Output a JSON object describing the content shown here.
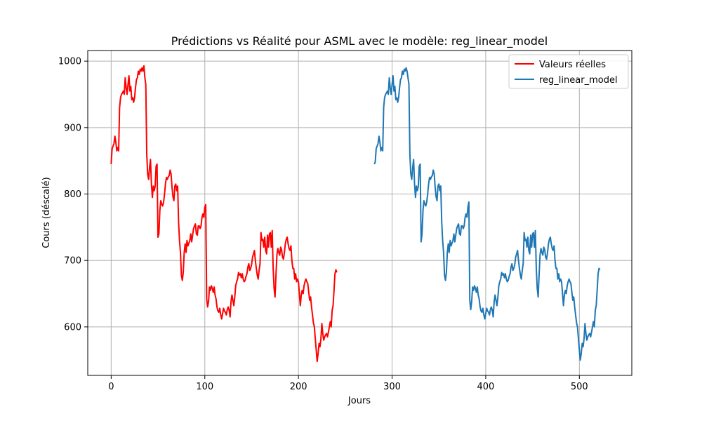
{
  "chart_data": {
    "type": "line",
    "title": "Prédictions vs Réalité pour ASML avec le modèle: reg_linear_model",
    "xlabel": "Jours",
    "ylabel": "Cours (déscalé)",
    "xlim": [
      -25,
      556
    ],
    "ylim": [
      527,
      1016
    ],
    "xticks": [
      0,
      100,
      200,
      300,
      400,
      500
    ],
    "yticks": [
      600,
      700,
      800,
      900,
      1000
    ],
    "grid": true,
    "legend_position": "top-right",
    "series": [
      {
        "name": "Valeurs réelles",
        "color": "#ff0000",
        "x_start": 0,
        "y": [
          845,
          868,
          872,
          876,
          887,
          878,
          865,
          870,
          865,
          930,
          945,
          950,
          952,
          955,
          950,
          975,
          960,
          950,
          965,
          978,
          955,
          962,
          942,
          945,
          938,
          945,
          960,
          972,
          975,
          985,
          980,
          988,
          985,
          990,
          985,
          993,
          975,
          965,
          860,
          830,
          822,
          840,
          852,
          815,
          795,
          812,
          805,
          812,
          842,
          845,
          735,
          740,
          775,
          790,
          785,
          782,
          788,
          800,
          815,
          825,
          822,
          826,
          828,
          836,
          830,
          810,
          796,
          790,
          812,
          815,
          805,
          812,
          758,
          730,
          712,
          678,
          670,
          682,
          712,
          725,
          712,
          730,
          722,
          726,
          730,
          740,
          728,
          738,
          748,
          752,
          755,
          740,
          738,
          752,
          752,
          748,
          752,
          765,
          770,
          765,
          780,
          784,
          642,
          630,
          638,
          660,
          655,
          662,
          658,
          652,
          660,
          648,
          642,
          630,
          624,
          622,
          628,
          618,
          612,
          620,
          628,
          624,
          622,
          618,
          626,
          630,
          625,
          615,
          638,
          648,
          640,
          632,
          645,
          662,
          668,
          672,
          682,
          678,
          680,
          674,
          680,
          672,
          668,
          670,
          676,
          680,
          690,
          695,
          685,
          688,
          694,
          705,
          710,
          715,
          700,
          688,
          678,
          672,
          685,
          695,
          742,
          730,
          732,
          720,
          735,
          715,
          710,
          738,
          720,
          740,
          742,
          720,
          745,
          688,
          658,
          645,
          678,
          708,
          718,
          712,
          708,
          720,
          716,
          705,
          702,
          712,
          725,
          732,
          735,
          725,
          718,
          715,
          722,
          700,
          688,
          688,
          672,
          680,
          668,
          672,
          668,
          650,
          632,
          648,
          655,
          650,
          662,
          668,
          672,
          668,
          665,
          652,
          640,
          645,
          630,
          618,
          606,
          600,
          582,
          565,
          548,
          560,
          575,
          570,
          582,
          605,
          590,
          580,
          585,
          588,
          590,
          585,
          592,
          600,
          608,
          600,
          625,
          632,
          655,
          680,
          686,
          682
        ]
      },
      {
        "name": "reg_linear_model",
        "color": "#1f77b4",
        "x_start": 281,
        "y": [
          845,
          848,
          868,
          872,
          876,
          887,
          878,
          865,
          870,
          865,
          930,
          945,
          950,
          952,
          955,
          950,
          975,
          960,
          950,
          965,
          978,
          955,
          962,
          942,
          945,
          938,
          945,
          960,
          972,
          975,
          985,
          980,
          988,
          985,
          990,
          985,
          975,
          965,
          860,
          830,
          822,
          840,
          852,
          815,
          795,
          812,
          805,
          812,
          842,
          845,
          728,
          740,
          775,
          790,
          785,
          782,
          788,
          800,
          815,
          825,
          822,
          826,
          828,
          836,
          830,
          810,
          796,
          790,
          812,
          815,
          805,
          812,
          758,
          730,
          712,
          678,
          670,
          682,
          712,
          725,
          712,
          730,
          722,
          726,
          730,
          740,
          728,
          738,
          748,
          752,
          755,
          740,
          738,
          752,
          752,
          748,
          752,
          765,
          770,
          765,
          780,
          788,
          640,
          626,
          638,
          660,
          655,
          662,
          658,
          652,
          660,
          648,
          642,
          630,
          624,
          622,
          628,
          618,
          612,
          620,
          628,
          624,
          622,
          618,
          626,
          630,
          625,
          615,
          638,
          648,
          640,
          632,
          645,
          662,
          668,
          672,
          682,
          678,
          680,
          674,
          680,
          672,
          668,
          670,
          676,
          680,
          690,
          695,
          685,
          688,
          694,
          705,
          710,
          715,
          700,
          688,
          678,
          672,
          685,
          695,
          742,
          730,
          732,
          720,
          735,
          715,
          710,
          738,
          720,
          740,
          742,
          720,
          745,
          688,
          658,
          645,
          678,
          708,
          718,
          712,
          708,
          720,
          716,
          705,
          702,
          712,
          725,
          732,
          735,
          725,
          718,
          715,
          722,
          700,
          688,
          688,
          672,
          680,
          668,
          672,
          668,
          650,
          632,
          648,
          655,
          650,
          662,
          668,
          672,
          668,
          665,
          652,
          640,
          645,
          630,
          618,
          606,
          600,
          582,
          565,
          550,
          560,
          575,
          570,
          582,
          605,
          590,
          580,
          585,
          588,
          590,
          585,
          592,
          600,
          608,
          600,
          625,
          632,
          655,
          680,
          688,
          686
        ]
      }
    ]
  }
}
